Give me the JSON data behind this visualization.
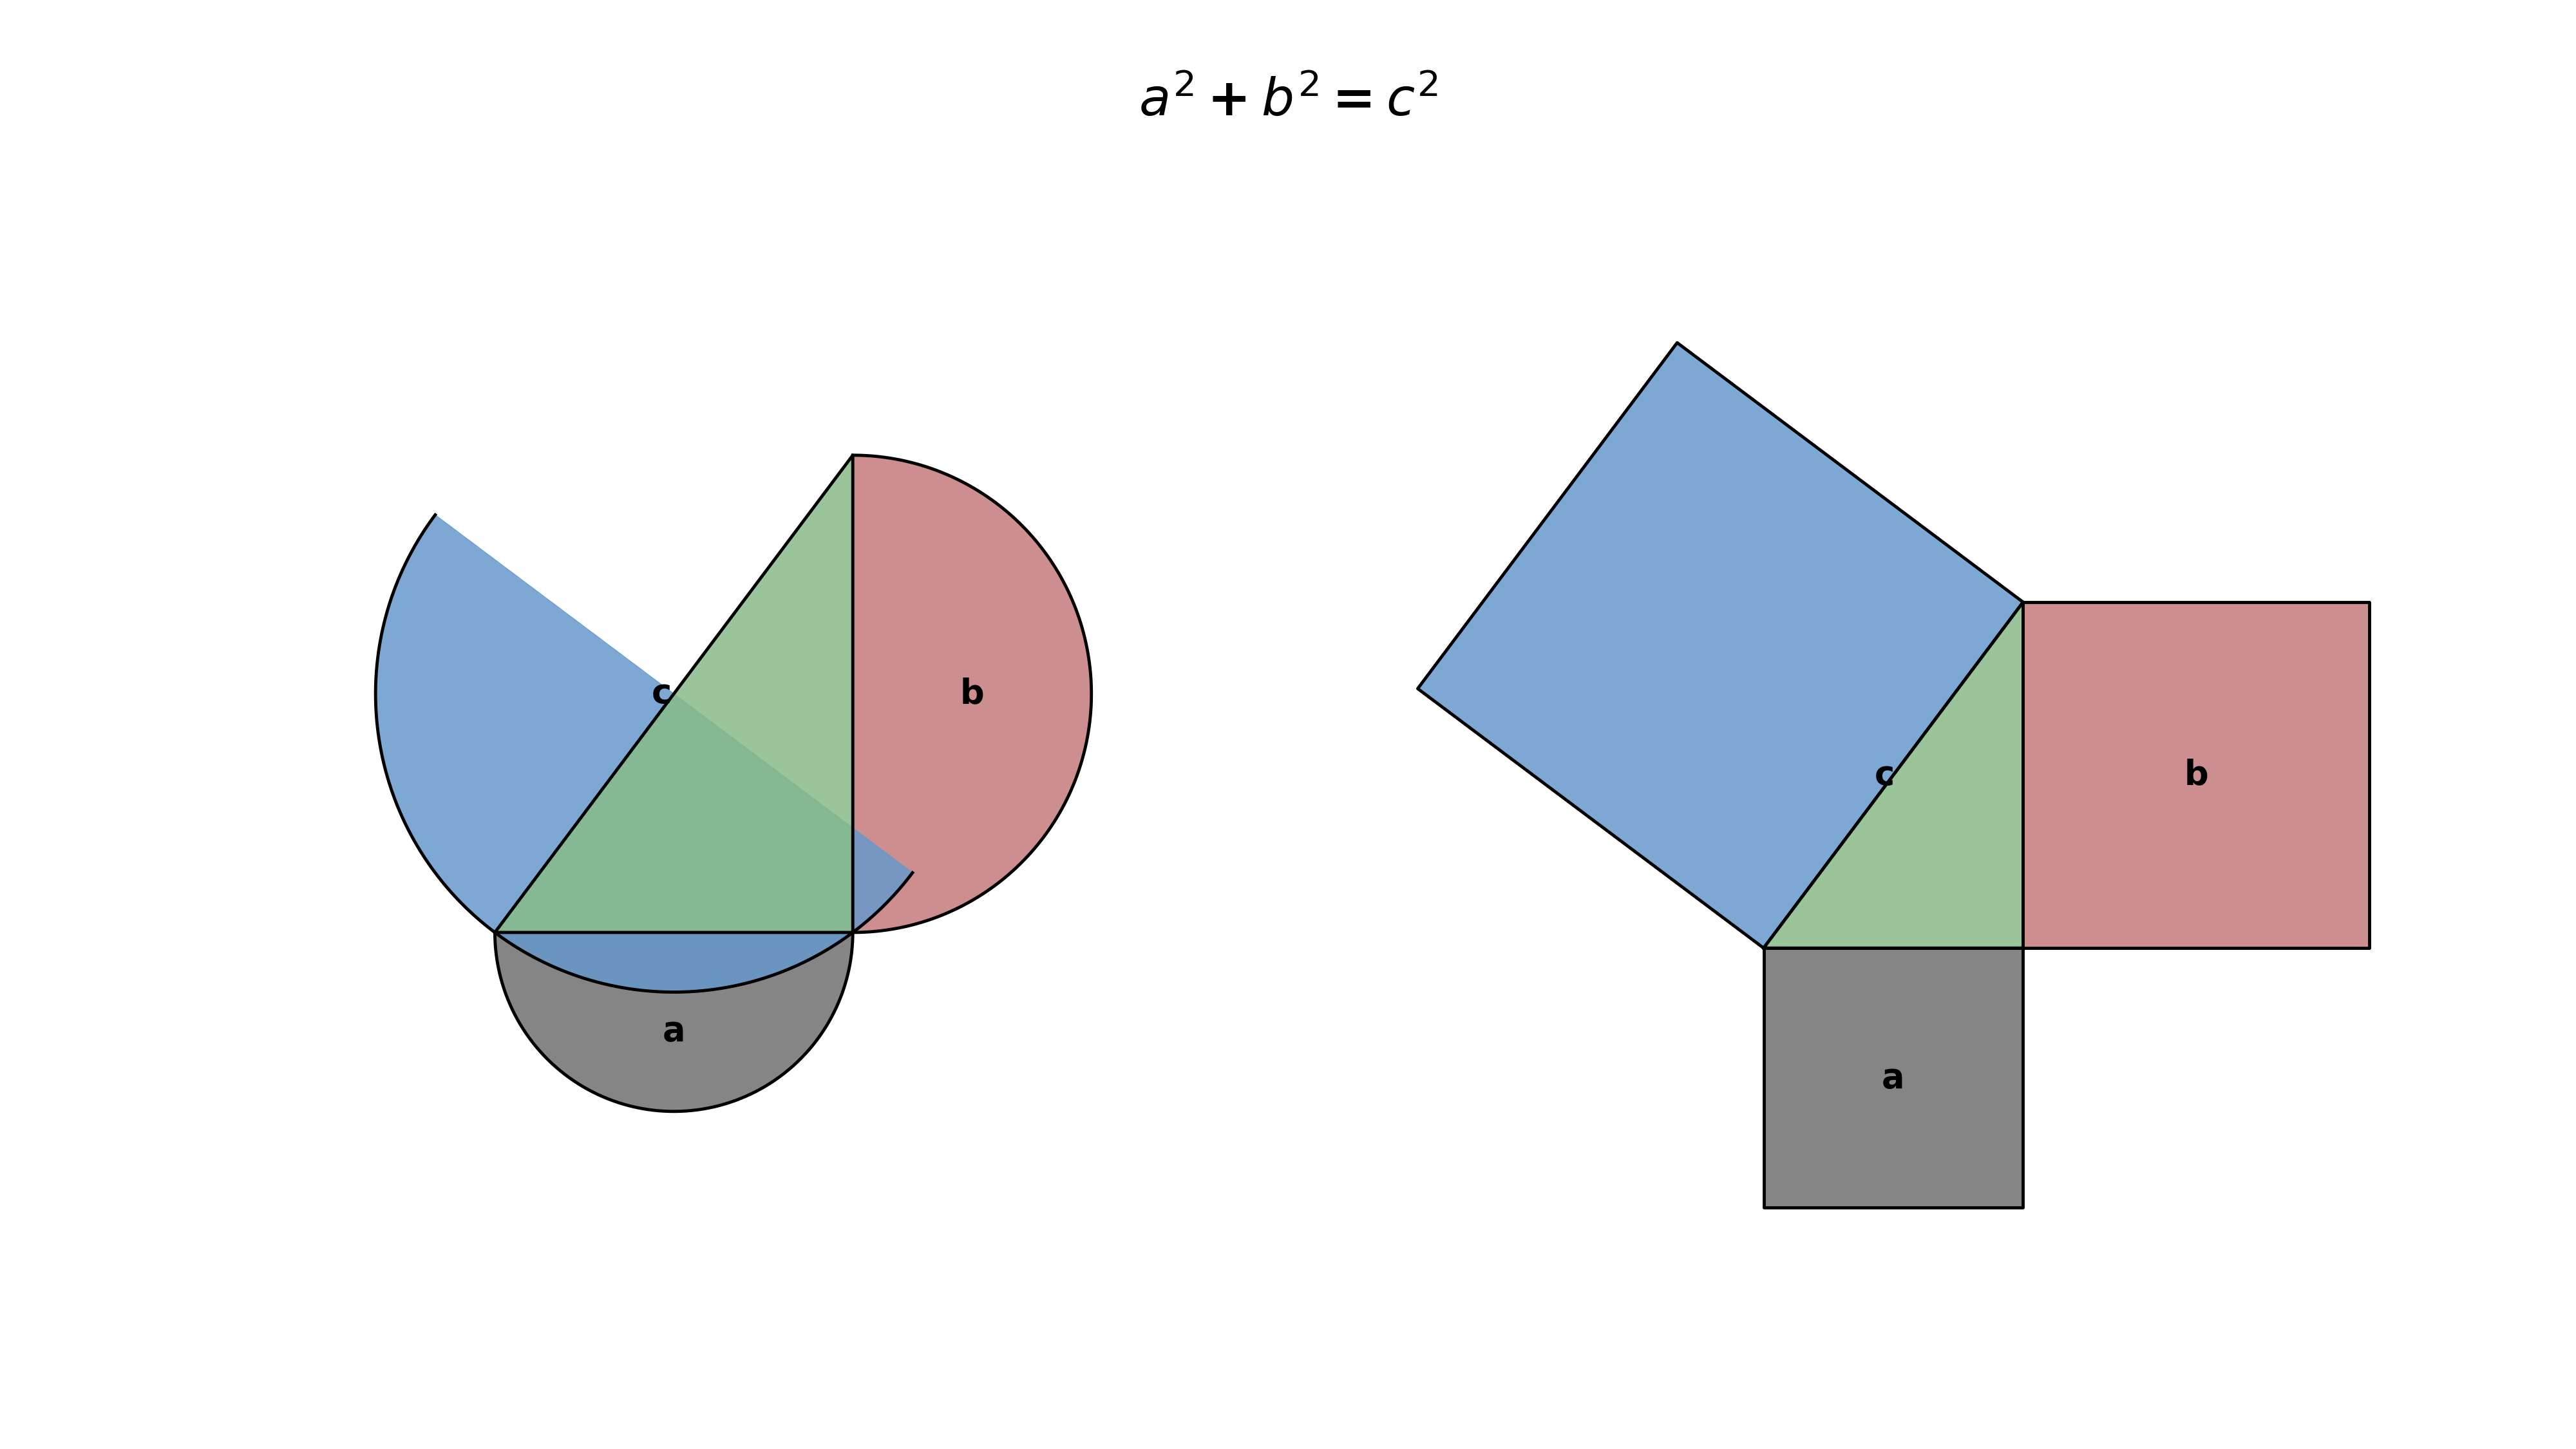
{
  "title": "$\\boldsymbol{a^2 + b^2 = c^2}$",
  "title_fontsize": 58,
  "background_color": "#ffffff",
  "color_a": "#707070",
  "color_b": "#c47a7a",
  "color_c": "#6699cc",
  "color_triangle": "#88bb88",
  "color_edge": "#000000",
  "alpha_fill": 0.85,
  "lw": 3.5,
  "label_fontsize": 38,
  "a": 3.0,
  "b": 4.0,
  "c": 5.0,
  "label_a": "a",
  "label_b": "b",
  "label_c": "c"
}
